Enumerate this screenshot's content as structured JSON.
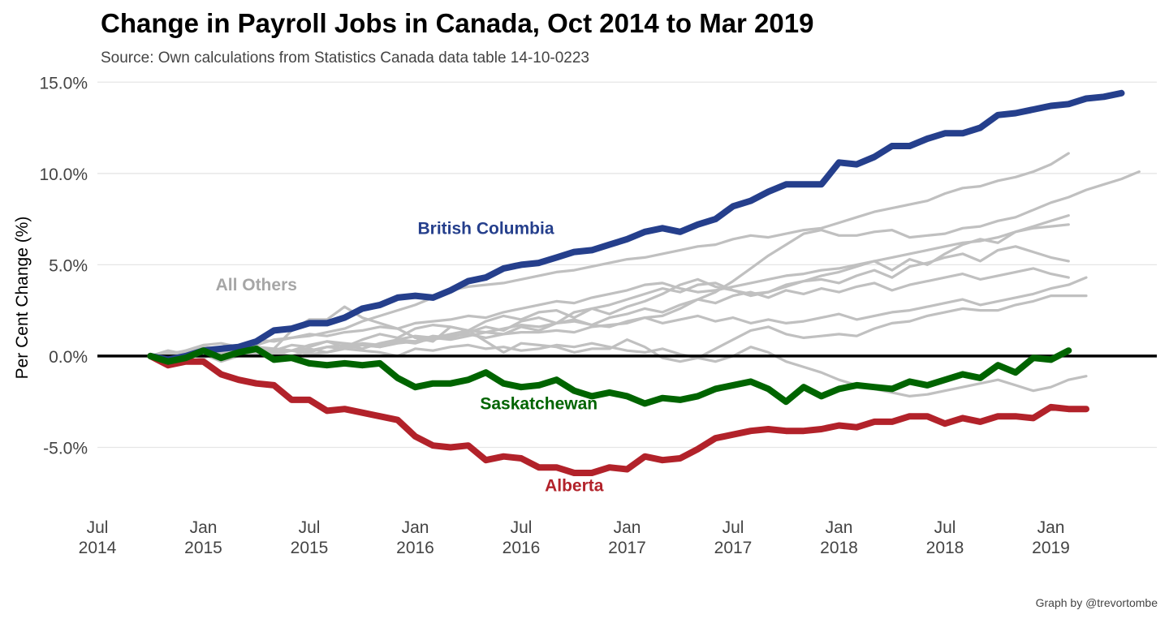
{
  "chart_data": {
    "type": "line",
    "title": "Change in Payroll Jobs in Canada, Oct 2014 to Mar 2019",
    "subtitle": "Source: Own calculations from Statistics Canada data table 14-10-0223",
    "caption": "Graph by @trevortombe",
    "ylabel": "Per Cent Change (%)",
    "xlabel": "",
    "x_start": "2014-10",
    "x_end": "2019-03",
    "xlim": [
      "2014-07",
      "2019-07"
    ],
    "ylim": [
      -8.4,
      15.5
    ],
    "x_ticks": [
      {
        "date": "2014-07",
        "line1": "Jul",
        "line2": "2014"
      },
      {
        "date": "2015-01",
        "line1": "Jan",
        "line2": "2015"
      },
      {
        "date": "2015-07",
        "line1": "Jul",
        "line2": "2015"
      },
      {
        "date": "2016-01",
        "line1": "Jan",
        "line2": "2016"
      },
      {
        "date": "2016-07",
        "line1": "Jul",
        "line2": "2016"
      },
      {
        "date": "2017-01",
        "line1": "Jan",
        "line2": "2017"
      },
      {
        "date": "2017-07",
        "line1": "Jul",
        "line2": "2017"
      },
      {
        "date": "2018-01",
        "line1": "Jan",
        "line2": "2018"
      },
      {
        "date": "2018-07",
        "line1": "Jul",
        "line2": "2018"
      },
      {
        "date": "2019-01",
        "line1": "Jan",
        "line2": "2019"
      }
    ],
    "y_ticks": [
      {
        "value": -5,
        "label": "-5.0%"
      },
      {
        "value": 0,
        "label": "0.0%"
      },
      {
        "value": 5,
        "label": "5.0%"
      },
      {
        "value": 10,
        "label": "10.0%"
      },
      {
        "value": 15,
        "label": "15.0%"
      }
    ],
    "grid": true,
    "legend": "none",
    "zero_line": true,
    "colors": {
      "highlight_bc": "#253f8c",
      "highlight_ab": "#b2222a",
      "highlight_sk": "#006400",
      "others": "#c0c0c0",
      "others_label": "#a6a6a6"
    },
    "annotations": [
      {
        "text": "British Columbia",
        "color": "#253f8c",
        "date": "2016-05",
        "y": 7.0
      },
      {
        "text": "All Others",
        "color": "#a6a6a6",
        "date": "2015-04",
        "y": 3.9
      },
      {
        "text": "Saskatchewan",
        "color": "#006400",
        "date": "2016-08",
        "y": -2.6
      },
      {
        "text": "Alberta",
        "color": "#b2222a",
        "date": "2016-10",
        "y": -7.1
      }
    ],
    "series": [
      {
        "group": "others",
        "values": [
          0,
          -0.4,
          0.3,
          0.1,
          0.2,
          0,
          0.5,
          0.4,
          1.4,
          2.0,
          2.0,
          2.7,
          2.1,
          1.8,
          1.5,
          1.0,
          0.8,
          1.6,
          1.4,
          0.8,
          0.2,
          0.7,
          0.6,
          0.5,
          0.2,
          0.4,
          0.4,
          0.9,
          0.5,
          -0.1,
          -0.3,
          -0.1,
          0.4,
          0.9,
          1.4,
          1.6,
          1.2,
          1.0,
          1.1,
          1.2,
          1.1,
          1.5,
          1.8,
          1.9,
          2.2,
          2.4,
          2.6,
          2.5,
          2.5,
          2.8,
          3.0,
          3.3,
          3.3,
          3.3
        ]
      },
      {
        "group": "others",
        "values": [
          0,
          0.3,
          0.1,
          0.2,
          0.3,
          0.2,
          0.4,
          0.3,
          0.6,
          0.5,
          0.8,
          0.7,
          0.6,
          0.5,
          0.7,
          0.8,
          0.9,
          1.1,
          1.2,
          1.0,
          1.2,
          1.3,
          1.3,
          1.4,
          1.3,
          1.6,
          1.7,
          1.8,
          2.1,
          2.2,
          2.6,
          3.1,
          3.5,
          4.1,
          4.8,
          5.5,
          6.1,
          6.7,
          6.9,
          6.6,
          6.6,
          6.8,
          6.9,
          6.5,
          6.6,
          6.7,
          7.0,
          7.1,
          7.4,
          7.6,
          8.0,
          8.4,
          8.7,
          9.1,
          9.4,
          9.7,
          10.1
        ]
      },
      {
        "group": "others",
        "values": [
          0,
          0.1,
          0.3,
          0.6,
          0.7,
          0.5,
          0.9,
          0.8,
          1.0,
          1.1,
          1.3,
          1.5,
          1.9,
          2.2,
          2.5,
          2.8,
          3.2,
          3.6,
          3.8,
          3.9,
          4.0,
          4.2,
          4.4,
          4.6,
          4.7,
          4.9,
          5.1,
          5.3,
          5.4,
          5.6,
          5.8,
          6.0,
          6.1,
          6.4,
          6.6,
          6.5,
          6.7,
          6.9,
          7.0,
          7.3,
          7.6,
          7.9,
          8.1,
          8.3,
          8.5,
          8.9,
          9.2,
          9.3,
          9.6,
          9.8,
          10.1,
          10.5,
          11.1
        ]
      },
      {
        "group": "others",
        "values": [
          0,
          0.2,
          0.2,
          0.5,
          0.4,
          0.6,
          0.6,
          0.9,
          1.0,
          1.2,
          1.1,
          1.3,
          1.4,
          1.6,
          1.5,
          1.8,
          1.9,
          2.0,
          2.2,
          2.1,
          2.4,
          2.6,
          2.8,
          3.0,
          2.9,
          3.2,
          3.4,
          3.6,
          3.9,
          4.0,
          3.7,
          3.5,
          3.6,
          3.8,
          4.0,
          4.2,
          4.4,
          4.5,
          4.7,
          4.8,
          5.0,
          5.2,
          5.4,
          5.6,
          5.8,
          6.0,
          6.2,
          6.3,
          6.5,
          6.8,
          7.1,
          7.4,
          7.7
        ]
      },
      {
        "group": "others",
        "values": [
          0,
          0.1,
          -0.2,
          0.2,
          0.0,
          0.3,
          0.1,
          0.4,
          0.3,
          0.2,
          0.5,
          0.6,
          0.4,
          0.7,
          0.9,
          0.8,
          1.1,
          1.0,
          1.3,
          1.6,
          1.4,
          1.9,
          2.1,
          1.8,
          2.4,
          2.6,
          2.3,
          2.7,
          3.0,
          3.4,
          3.9,
          4.2,
          3.8,
          3.6,
          3.4,
          3.5,
          3.9,
          4.1,
          4.4,
          4.6,
          4.9,
          5.2,
          4.7,
          5.3,
          5.0,
          5.6,
          6.1,
          6.4,
          6.2,
          6.8,
          7.0,
          7.1,
          7.2
        ]
      },
      {
        "group": "others",
        "values": [
          0,
          -0.2,
          -0.1,
          0.1,
          -0.3,
          0.0,
          0.2,
          0.4,
          0.3,
          0.6,
          0.8,
          0.5,
          0.9,
          1.2,
          1.0,
          1.5,
          1.7,
          1.6,
          1.4,
          1.9,
          2.2,
          2.0,
          2.4,
          2.5,
          2.1,
          2.6,
          2.8,
          3.1,
          3.4,
          3.7,
          3.5,
          3.9,
          4.0,
          3.6,
          3.3,
          3.5,
          3.8,
          4.1,
          4.2,
          4.0,
          4.4,
          4.7,
          4.3,
          4.9,
          5.1,
          5.4,
          5.6,
          5.2,
          5.8,
          6.0,
          5.7,
          5.4,
          5.2
        ]
      },
      {
        "group": "others",
        "values": [
          0,
          0.0,
          0.1,
          -0.1,
          0.2,
          0.1,
          0.3,
          0.2,
          0.0,
          0.3,
          0.5,
          0.4,
          0.6,
          0.5,
          0.8,
          0.7,
          1.0,
          0.9,
          1.1,
          1.3,
          1.2,
          1.6,
          1.4,
          1.8,
          2.0,
          1.7,
          2.1,
          2.3,
          2.6,
          2.4,
          2.8,
          3.1,
          2.9,
          3.3,
          3.5,
          3.2,
          3.6,
          3.4,
          3.7,
          3.5,
          3.8,
          4.0,
          3.6,
          3.9,
          4.1,
          4.3,
          4.5,
          4.2,
          4.4,
          4.6,
          4.8,
          4.5,
          4.3
        ]
      },
      {
        "group": "others",
        "values": [
          0,
          0.2,
          0.1,
          0.0,
          0.1,
          0.0,
          0.2,
          0.1,
          0.3,
          0.4,
          0.2,
          0.5,
          0.7,
          0.6,
          0.9,
          1.1,
          1.0,
          1.2,
          1.4,
          1.3,
          1.5,
          1.7,
          1.6,
          1.8,
          1.9,
          1.7,
          1.6,
          1.9,
          2.1,
          1.8,
          2.0,
          2.2,
          1.9,
          2.1,
          1.8,
          2.0,
          1.8,
          1.9,
          2.1,
          2.3,
          2.0,
          2.2,
          2.4,
          2.5,
          2.7,
          2.9,
          3.1,
          2.8,
          3.0,
          3.2,
          3.4,
          3.7,
          3.9,
          4.3
        ]
      },
      {
        "group": "others",
        "values": [
          0,
          0.0,
          0.1,
          0.0,
          -0.1,
          0.1,
          0.0,
          0.2,
          0.3,
          0.1,
          0.2,
          0.4,
          0.3,
          0.2,
          0.0,
          0.4,
          0.3,
          0.5,
          0.6,
          0.4,
          0.5,
          0.3,
          0.4,
          0.6,
          0.5,
          0.7,
          0.5,
          0.3,
          0.2,
          0.4,
          0.1,
          -0.1,
          -0.3,
          0.0,
          0.5,
          0.2,
          -0.3,
          -0.6,
          -0.9,
          -1.3,
          -1.6,
          -1.8,
          -2.0,
          -2.2,
          -2.1,
          -1.9,
          -1.7,
          -1.5,
          -1.3,
          -1.6,
          -1.9,
          -1.7,
          -1.3,
          -1.1
        ]
      }
    ],
    "highlight_series": [
      {
        "name": "British Columbia",
        "color": "#253f8c",
        "values": [
          0,
          -0.2,
          0,
          0.3,
          0.4,
          0.5,
          0.8,
          1.4,
          1.5,
          1.8,
          1.8,
          2.1,
          2.6,
          2.8,
          3.2,
          3.3,
          3.2,
          3.6,
          4.1,
          4.3,
          4.8,
          5.0,
          5.1,
          5.4,
          5.7,
          5.8,
          6.1,
          6.4,
          6.8,
          7.0,
          6.8,
          7.2,
          7.5,
          8.2,
          8.5,
          9.0,
          9.4,
          9.4,
          9.4,
          10.6,
          10.5,
          10.9,
          11.5,
          11.5,
          11.9,
          12.2,
          12.2,
          12.5,
          13.2,
          13.3,
          13.5,
          13.7,
          13.8,
          14.1,
          14.2,
          14.4
        ]
      },
      {
        "name": "Alberta",
        "color": "#b2222a",
        "values": [
          0,
          -0.5,
          -0.3,
          -0.3,
          -1.0,
          -1.3,
          -1.5,
          -1.6,
          -2.4,
          -2.4,
          -3.0,
          -2.9,
          -3.1,
          -3.3,
          -3.5,
          -4.4,
          -4.9,
          -5.0,
          -4.9,
          -5.7,
          -5.5,
          -5.6,
          -6.1,
          -6.1,
          -6.4,
          -6.4,
          -6.1,
          -6.2,
          -5.5,
          -5.7,
          -5.6,
          -5.1,
          -4.5,
          -4.3,
          -4.1,
          -4.0,
          -4.1,
          -4.1,
          -4.0,
          -3.8,
          -3.9,
          -3.6,
          -3.6,
          -3.3,
          -3.3,
          -3.7,
          -3.4,
          -3.6,
          -3.3,
          -3.3,
          -3.4,
          -2.8,
          -2.9,
          -2.9
        ]
      },
      {
        "name": "Saskatchewan",
        "color": "#006400",
        "values": [
          0,
          -0.3,
          -0.1,
          0.3,
          -0.1,
          0.2,
          0.4,
          -0.2,
          -0.1,
          -0.4,
          -0.5,
          -0.4,
          -0.5,
          -0.4,
          -1.2,
          -1.7,
          -1.5,
          -1.5,
          -1.3,
          -0.9,
          -1.5,
          -1.7,
          -1.6,
          -1.3,
          -1.9,
          -2.2,
          -2.0,
          -2.2,
          -2.6,
          -2.3,
          -2.4,
          -2.2,
          -1.8,
          -1.6,
          -1.4,
          -1.8,
          -2.5,
          -1.7,
          -2.2,
          -1.8,
          -1.6,
          -1.7,
          -1.8,
          -1.4,
          -1.6,
          -1.3,
          -1.0,
          -1.2,
          -0.5,
          -0.9,
          -0.1,
          -0.2,
          0.3
        ]
      }
    ]
  }
}
